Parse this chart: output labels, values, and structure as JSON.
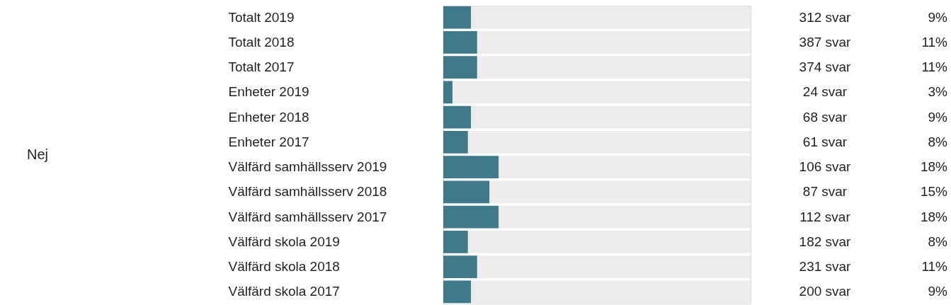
{
  "chart_data": {
    "type": "bar",
    "orientation": "horizontal",
    "categories": [
      "Totalt 2019",
      "Totalt 2018",
      "Totalt 2017",
      "Enheter 2019",
      "Enheter 2018",
      "Enheter 2017",
      "Välfärd samhällsserv 2019",
      "Välfärd samhällsserv 2018",
      "Välfärd samhällsserv 2017",
      "Välfärd skola 2019",
      "Välfärd skola 2018",
      "Välfärd skola 2017"
    ],
    "values": [
      9,
      11,
      11,
      3,
      9,
      8,
      18,
      15,
      18,
      8,
      11,
      9
    ],
    "value_labels": [
      "9%",
      "11%",
      "11%",
      "3%",
      "9%",
      "8%",
      "18%",
      "15%",
      "18%",
      "8%",
      "11%",
      "9%"
    ],
    "color": "#3f7a8b",
    "xlim": [
      0,
      100
    ],
    "tick_labels": "y",
    "annotations": [
      "Nej",
      "312 svar",
      "387 svar",
      "374 svar",
      "24 svar",
      "68 svar",
      "61 svar",
      "106 svar",
      "87 svar",
      "112 svar",
      "182 svar",
      "231 svar",
      "200 svar"
    ]
  }
}
